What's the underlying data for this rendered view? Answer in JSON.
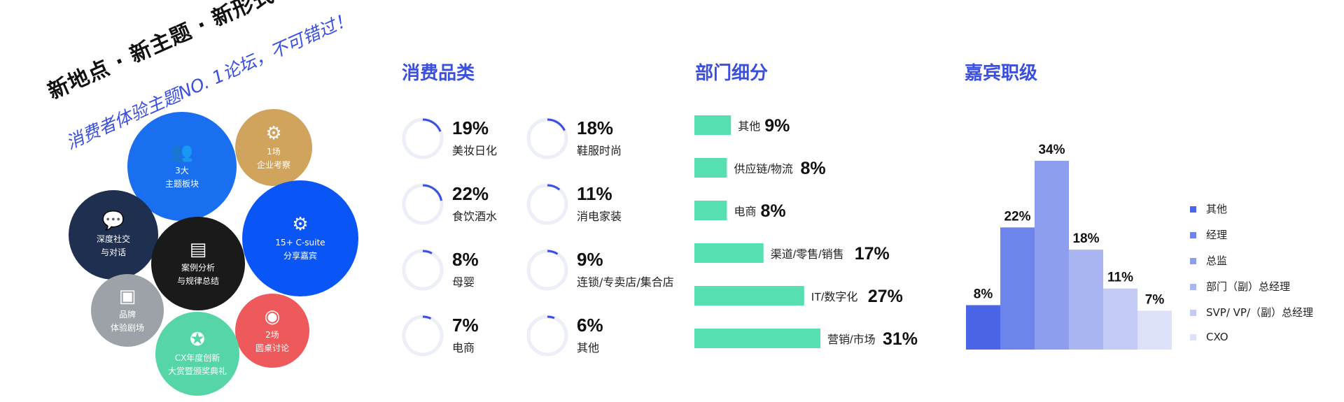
{
  "promo": {
    "tagline_main": "新地点 · 新主题 · 新形式",
    "tagline_sub": "消费者体验主题NO. 1论坛，不可错过！",
    "bubbles": [
      {
        "line1": "3大",
        "line2": "主题板块",
        "icon": "people-group-icon",
        "color": "#1a6ff0"
      },
      {
        "line1": "1场",
        "line2": "企业考察",
        "icon": "magnifier-gear-icon",
        "color": "#d1a45e"
      },
      {
        "line1": "深度社交",
        "line2": "与对话",
        "icon": "chat-bubbles-icon",
        "color": "#1f2f4f"
      },
      {
        "line1": "案例分析",
        "line2": "与规律总结",
        "icon": "presentation-board-icon",
        "color": "#1a1a1a"
      },
      {
        "line1": "15+ C-suite",
        "line2": "分享嘉宾",
        "icon": "brain-gears-icon",
        "color": "#0a55f5"
      },
      {
        "line1": "品牌",
        "line2": "体验剧场",
        "icon": "theater-screen-icon",
        "color": "#9da2a8"
      },
      {
        "line1": "2场",
        "line2": "圆桌讨论",
        "icon": "roundtable-icon",
        "color": "#ee5a5c"
      },
      {
        "line1": "CX年度创新",
        "line2": "大赏暨颁奖典礼",
        "icon": "medal-icon",
        "color": "#56d6a7"
      }
    ]
  },
  "consumer_categories": {
    "title": "消费品类",
    "items": [
      {
        "pct": "19%",
        "value": 19,
        "label": "美妆日化"
      },
      {
        "pct": "18%",
        "value": 18,
        "label": "鞋服时尚"
      },
      {
        "pct": "22%",
        "value": 22,
        "label": "食饮酒水"
      },
      {
        "pct": "11%",
        "value": 11,
        "label": "消电家装"
      },
      {
        "pct": "8%",
        "value": 8,
        "label": "母婴"
      },
      {
        "pct": "9%",
        "value": 9,
        "label": "连锁/专卖店/集合店"
      },
      {
        "pct": "7%",
        "value": 7,
        "label": "电商"
      },
      {
        "pct": "6%",
        "value": 6,
        "label": "其他"
      }
    ],
    "ring_track_color": "#eceef8",
    "ring_color": "#3a4fe0"
  },
  "department": {
    "title": "部门细分",
    "bar_color": "#56dfb0",
    "items": [
      {
        "label": "其他",
        "pct": "9%",
        "value": 9
      },
      {
        "label": "供应链/物流",
        "pct": "8%",
        "value": 8
      },
      {
        "label": "电商",
        "pct": "8%",
        "value": 8
      },
      {
        "label": "渠道/零售/销售",
        "pct": "17%",
        "value": 17
      },
      {
        "label": "IT/数字化",
        "pct": "27%",
        "value": 27
      },
      {
        "label": "营销/市场",
        "pct": "31%",
        "value": 31
      }
    ]
  },
  "guest_level": {
    "title": "嘉宾职级",
    "legend": [
      {
        "label": "其他",
        "color": "#4a66e6"
      },
      {
        "label": "经理",
        "color": "#6d84ea"
      },
      {
        "label": "总监",
        "color": "#8d9eee"
      },
      {
        "label": "部门（副）总经理",
        "color": "#a9b6f2"
      },
      {
        "label": "SVP/ VP/（副）总经理",
        "color": "#c3cbf6"
      },
      {
        "label": "CXO",
        "color": "#dde2fa"
      }
    ]
  },
  "chart_data": [
    {
      "type": "pie",
      "title": "消费品类",
      "categories": [
        "美妆日化",
        "鞋服时尚",
        "食饮酒水",
        "消电家装",
        "母婴",
        "连锁/专卖店/集合店",
        "电商",
        "其他"
      ],
      "values": [
        19,
        18,
        22,
        11,
        8,
        9,
        7,
        6
      ]
    },
    {
      "type": "bar",
      "title": "部门细分",
      "categories": [
        "其他",
        "供应链/物流",
        "电商",
        "渠道/零售/销售",
        "IT/数字化",
        "营销/市场"
      ],
      "values": [
        9,
        8,
        8,
        17,
        27,
        31
      ]
    },
    {
      "type": "bar",
      "title": "嘉宾职级",
      "categories": [
        "其他",
        "经理",
        "总监",
        "部门（副）总经理",
        "SVP/ VP/（副）总经理",
        "CXO"
      ],
      "values": [
        8,
        22,
        34,
        18,
        11,
        7
      ],
      "data_labels": [
        "8%",
        "22%",
        "34%",
        "18%",
        "11%",
        "7%"
      ],
      "colors": [
        "#4a66e6",
        "#6d84ea",
        "#8d9eee",
        "#a9b6f2",
        "#c3cbf6",
        "#dde2fa"
      ]
    }
  ]
}
